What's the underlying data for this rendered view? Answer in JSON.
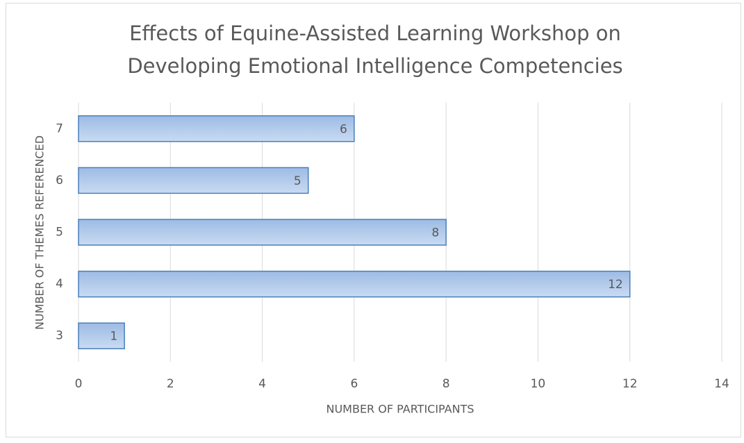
{
  "chart_data": {
    "type": "barh",
    "title": [
      "Effects of Equine-Assisted Learning Workshop on",
      "Developing Emotional Intelligence Competencies"
    ],
    "xlabel": "NUMBER OF PARTICIPANTS",
    "ylabel": "NUMBER OF THEMES REFERENCED",
    "categories": [
      "3",
      "4",
      "5",
      "6",
      "7"
    ],
    "values": [
      1,
      12,
      8,
      5,
      6
    ],
    "color": "#a7c2e6",
    "edgecolor": "#4a7ebb",
    "xlim": [
      0,
      14
    ],
    "xticks": [
      0,
      2,
      4,
      6,
      8,
      10,
      12,
      14
    ],
    "grid": true
  }
}
